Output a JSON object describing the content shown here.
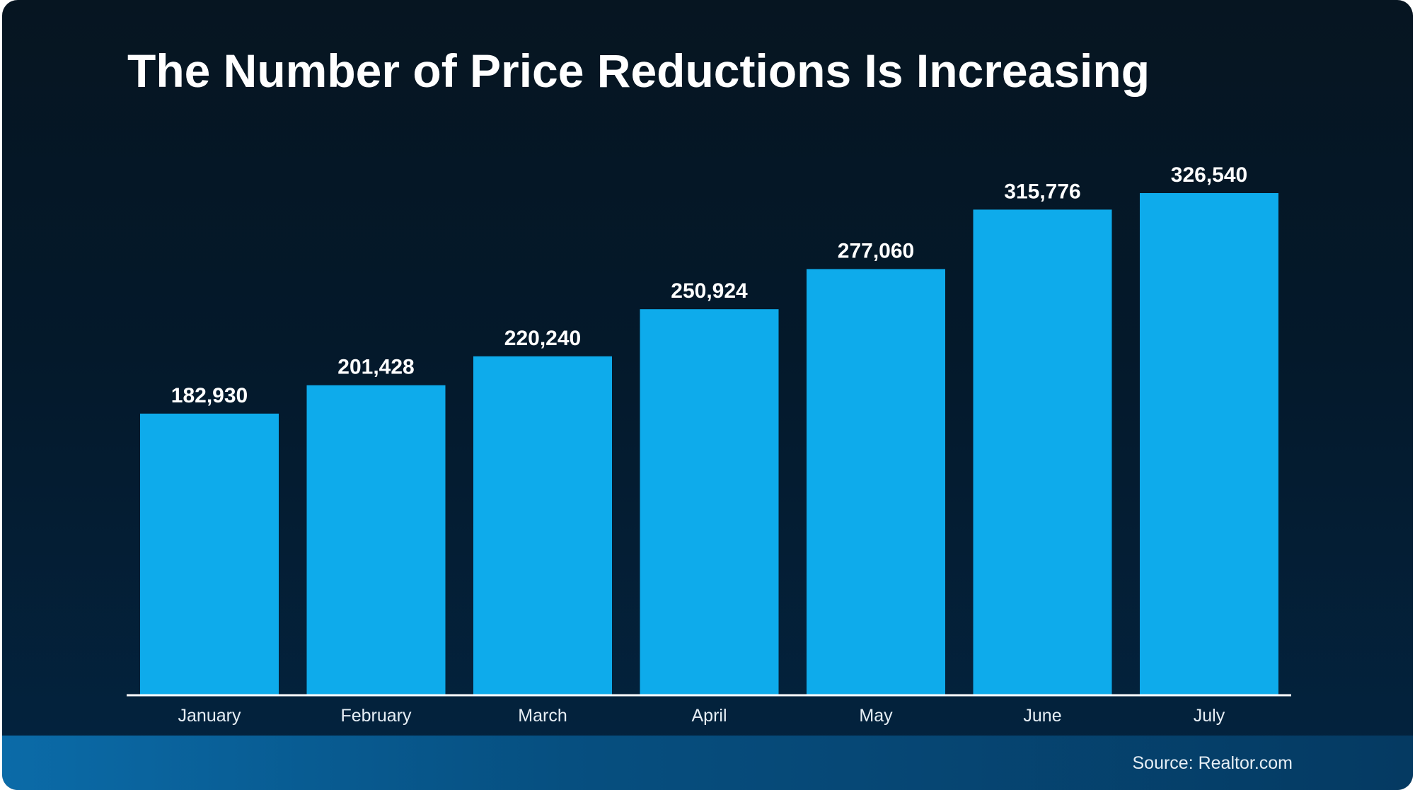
{
  "chart_data": {
    "type": "bar",
    "title": "The Number of Price Reductions Is Increasing",
    "categories": [
      "January",
      "February",
      "March",
      "April",
      "May",
      "June",
      "July"
    ],
    "values": [
      182930,
      201428,
      220240,
      250924,
      277060,
      315776,
      326540
    ],
    "data_labels": [
      "182,930",
      "201,428",
      "220,240",
      "250,924",
      "277,060",
      "315,776",
      "326,540"
    ],
    "xlabel": "",
    "ylabel": "",
    "ylim": [
      0,
      326540
    ],
    "grid": false,
    "bar_color": "#0eabeb",
    "source": "Source: Realtor.com"
  }
}
